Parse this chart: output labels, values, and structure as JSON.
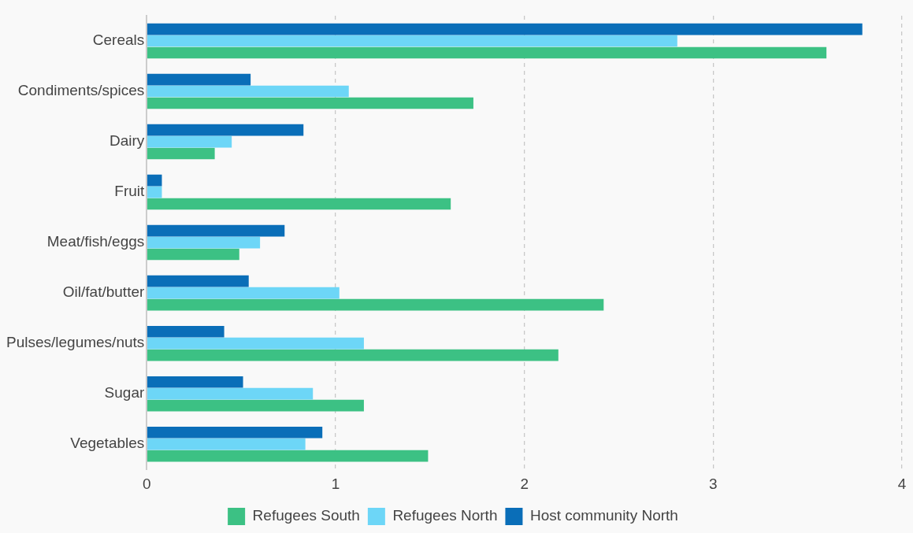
{
  "chart_data": {
    "type": "bar",
    "orientation": "horizontal",
    "categories": [
      "Cereals",
      "Condiments/spices",
      "Dairy",
      "Fruit",
      "Meat/fish/eggs",
      "Oil/fat/butter",
      "Pulses/legumes/nuts",
      "Sugar",
      "Vegetables"
    ],
    "series": [
      {
        "name": "Refugees South",
        "color": "#3cc184",
        "values": [
          3.6,
          1.73,
          0.36,
          1.61,
          0.49,
          2.42,
          2.18,
          1.15,
          1.49
        ]
      },
      {
        "name": "Refugees North",
        "color": "#6dd6f7",
        "values": [
          2.81,
          1.07,
          0.45,
          0.08,
          0.6,
          1.02,
          1.15,
          0.88,
          0.84
        ]
      },
      {
        "name": "Host community North",
        "color": "#0a6eb8",
        "values": [
          3.79,
          0.55,
          0.83,
          0.08,
          0.73,
          0.54,
          0.41,
          0.51,
          0.93
        ]
      }
    ],
    "xlim": [
      0,
      4
    ],
    "xticks": [
      0,
      1,
      2,
      3,
      4
    ],
    "grid": "x",
    "legend": "bottom"
  }
}
